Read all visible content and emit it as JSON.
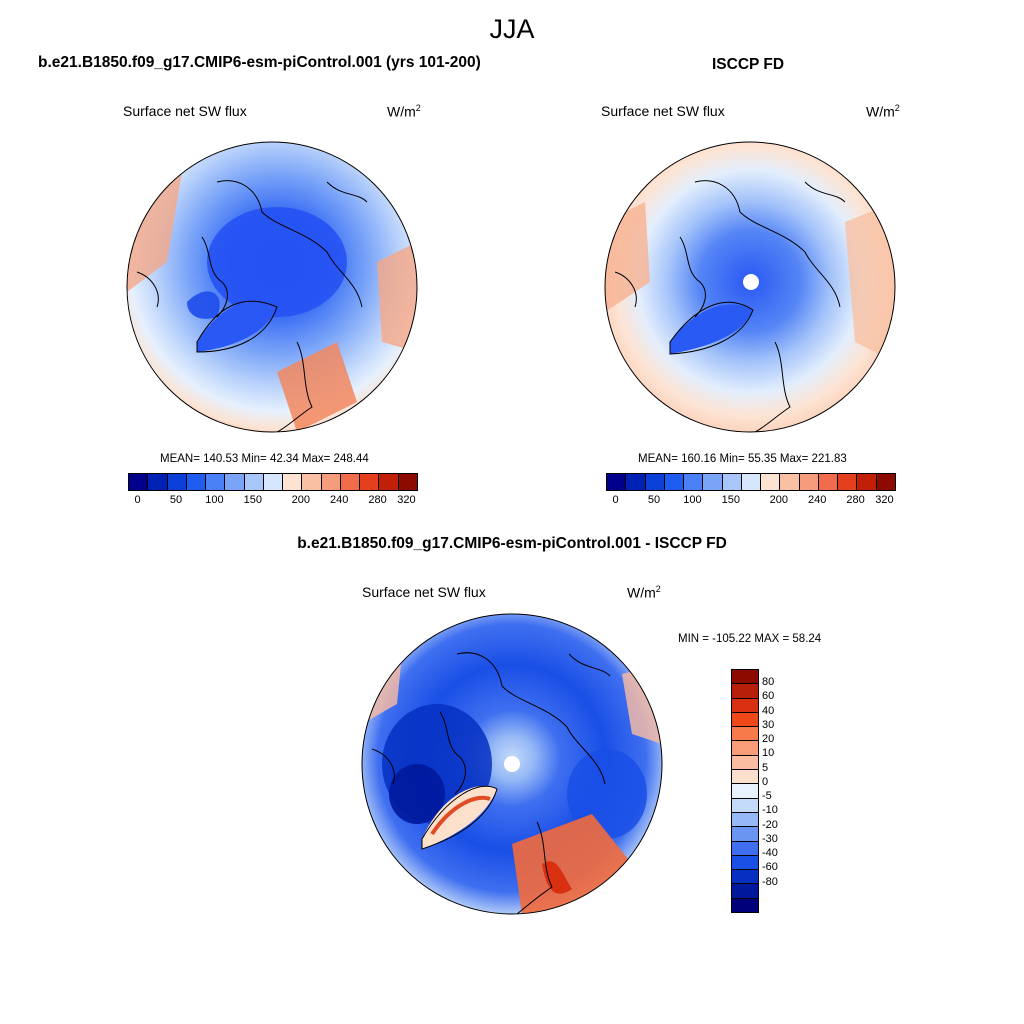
{
  "season_title": "JJA",
  "panels": [
    {
      "title": "b.e21.B1850.f09_g17.CMIP6-esm-piControl.001 (yrs 101-200)",
      "variable": "Surface net SW flux",
      "units_base": "W/m",
      "units_exp": "2",
      "stats": "MEAN= 140.53  Min=  42.34  Max= 248.44",
      "colorbar": {
        "colors": [
          "#00008c",
          "#0022b4",
          "#0a3fd8",
          "#1e5cf0",
          "#4a80f5",
          "#7aa4f8",
          "#a9c6fa",
          "#d6e6fc",
          "#fde3d2",
          "#f9c0a4",
          "#f59c7c",
          "#f06c4a",
          "#e4401e",
          "#c21f08",
          "#8c0a00"
        ],
        "tick_labels": [
          "0",
          "50",
          "100",
          "150",
          "200",
          "240",
          "280",
          "320"
        ]
      }
    },
    {
      "title": "ISCCP FD",
      "variable": "Surface net SW flux",
      "units_base": "W/m",
      "units_exp": "2",
      "stats": "MEAN= 160.16  Min=  55.35  Max= 221.83",
      "colorbar": {
        "colors": [
          "#00008c",
          "#0022b4",
          "#0a3fd8",
          "#1e5cf0",
          "#4a80f5",
          "#7aa4f8",
          "#a9c6fa",
          "#d6e6fc",
          "#fde3d2",
          "#f9c0a4",
          "#f59c7c",
          "#f06c4a",
          "#e4401e",
          "#c21f08",
          "#8c0a00"
        ],
        "tick_labels": [
          "0",
          "50",
          "100",
          "150",
          "200",
          "240",
          "280",
          "320"
        ]
      }
    },
    {
      "title": "b.e21.B1850.f09_g17.CMIP6-esm-piControl.001 - ISCCP FD",
      "variable": "Surface net SW flux",
      "units_base": "W/m",
      "units_exp": "2",
      "stats": "MIN = -105.22 MAX =  58.24",
      "colorbar": {
        "colors": [
          "#8c0a00",
          "#b81f0a",
          "#d83010",
          "#f04818",
          "#f77a4a",
          "#f99c78",
          "#fbbda2",
          "#fde0cc",
          "#e8f2fc",
          "#c4daf9",
          "#95b8f6",
          "#6a96f2",
          "#3f6ff0",
          "#1a4fe6",
          "#0630c2",
          "#00189c",
          "#00007a"
        ],
        "tick_labels": [
          "80",
          "60",
          "40",
          "30",
          "20",
          "10",
          "5",
          "0",
          "-5",
          "-10",
          "-20",
          "-30",
          "-40",
          "-60",
          "-80"
        ]
      }
    }
  ]
}
